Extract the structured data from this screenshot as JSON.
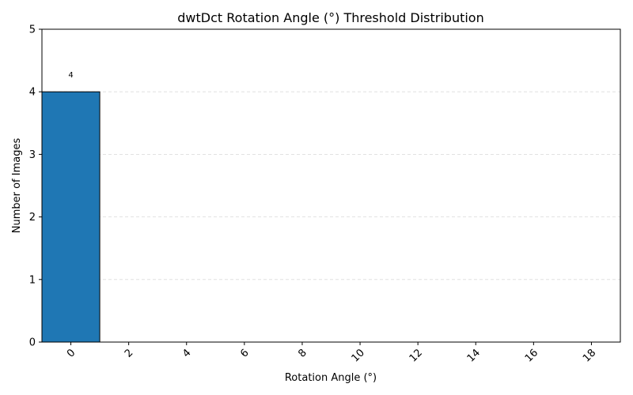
{
  "chart_data": {
    "type": "bar",
    "title": "dwtDct Rotation Angle (°) Threshold Distribution",
    "xlabel": "Rotation Angle (°)",
    "ylabel": "Number of Images",
    "x_range": [
      -1,
      19
    ],
    "x_ticks": [
      0,
      2,
      4,
      6,
      8,
      10,
      12,
      14,
      16,
      18
    ],
    "tick_rotation_deg": 45,
    "ylim": [
      0,
      5
    ],
    "y_ticks": [
      0,
      1,
      2,
      3,
      4,
      5
    ],
    "grid": "y-dashed",
    "bar_color": "#1f77b4",
    "edge_color": "#000000",
    "bars": [
      {
        "x_start": -1,
        "x_end": 1,
        "value": 4,
        "label": "4"
      },
      {
        "x_start": 1,
        "x_end": 3,
        "value": 0
      },
      {
        "x_start": 3,
        "x_end": 5,
        "value": 0
      },
      {
        "x_start": 5,
        "x_end": 7,
        "value": 0
      },
      {
        "x_start": 7,
        "x_end": 9,
        "value": 0
      },
      {
        "x_start": 9,
        "x_end": 11,
        "value": 0
      },
      {
        "x_start": 11,
        "x_end": 13,
        "value": 0
      },
      {
        "x_start": 13,
        "x_end": 15,
        "value": 0
      },
      {
        "x_start": 15,
        "x_end": 17,
        "value": 0
      },
      {
        "x_start": 17,
        "x_end": 19,
        "value": 0
      }
    ]
  }
}
